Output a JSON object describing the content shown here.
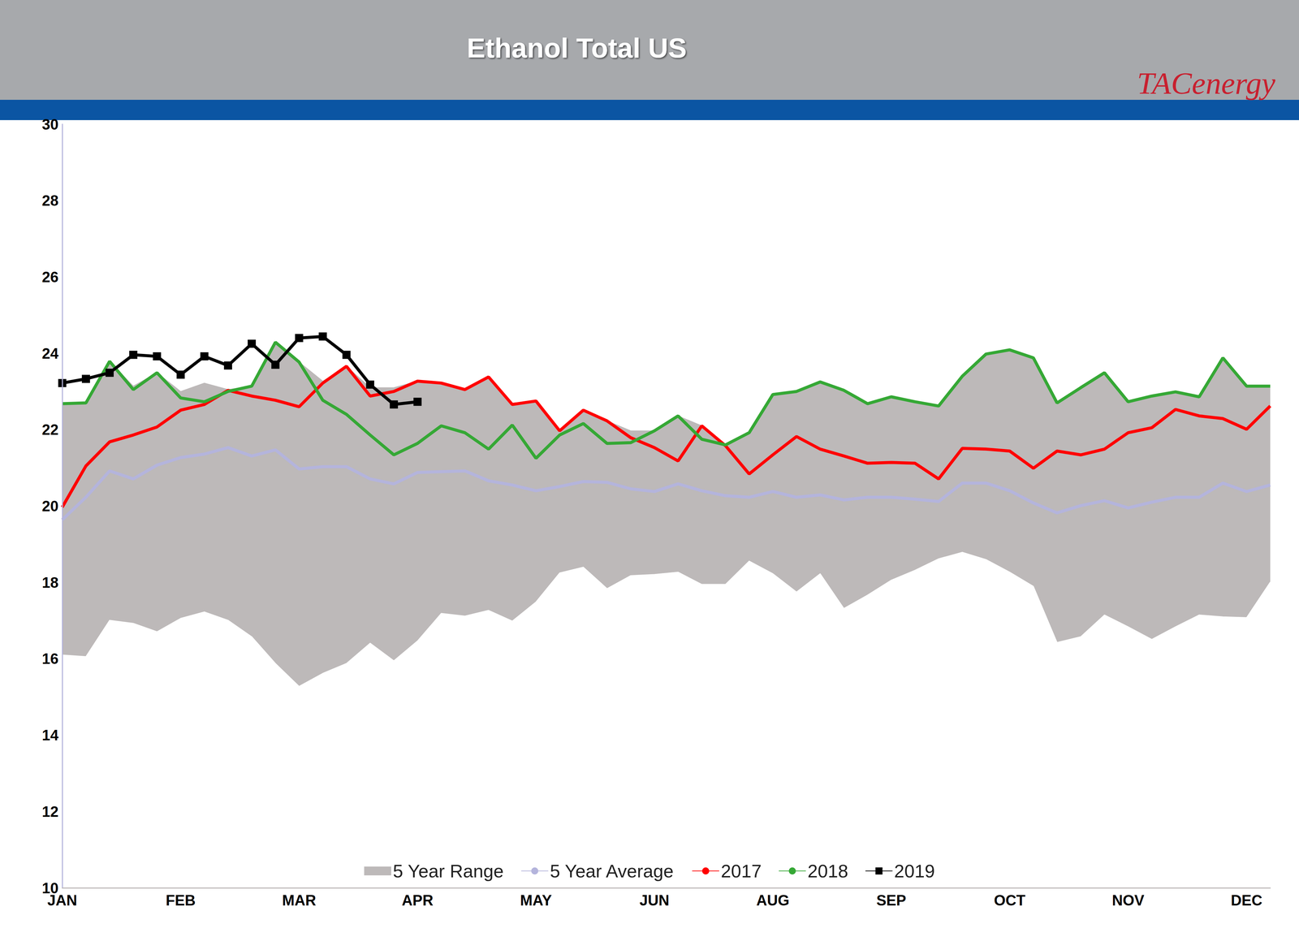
{
  "chart_data": {
    "type": "line",
    "title": "Ethanol Total US",
    "source": "TACenergy",
    "x": [
      "JAN",
      null,
      null,
      null,
      null,
      "FEB",
      null,
      null,
      null,
      null,
      "MAR",
      null,
      null,
      null,
      null,
      "APR",
      null,
      null,
      null,
      null,
      "MAY",
      null,
      null,
      null,
      null,
      "JUN",
      null,
      null,
      null,
      null,
      "AUG",
      null,
      null,
      null,
      null,
      "SEP",
      null,
      null,
      null,
      null,
      "OCT",
      null,
      null,
      null,
      null,
      "NOV",
      null,
      null,
      null,
      null,
      "DEC",
      null
    ],
    "ylim": [
      10,
      30
    ],
    "yticks": [
      10,
      12,
      14,
      16,
      18,
      20,
      22,
      24,
      26,
      28,
      30
    ],
    "grid": false,
    "legend": "bottom",
    "series": [
      {
        "name": "5 Year Range",
        "type": "range",
        "color": "#bdb9b9",
        "low": [
          16.1,
          16.06,
          17.01,
          16.93,
          16.71,
          17.06,
          17.23,
          17.01,
          16.58,
          15.88,
          15.28,
          15.62,
          15.88,
          16.41,
          15.95,
          16.47,
          17.19,
          17.12,
          17.27,
          16.99,
          17.49,
          18.25,
          18.4,
          17.84,
          18.18,
          18.21,
          18.27,
          17.95,
          17.95,
          18.56,
          18.23,
          17.75,
          18.23,
          17.32,
          17.67,
          18.06,
          18.32,
          18.62,
          18.79,
          18.6,
          18.27,
          17.9,
          16.43,
          16.58,
          17.15,
          16.84,
          16.51,
          16.84,
          17.15,
          17.1,
          17.08,
          18.01
        ],
        "high": [
          22.68,
          22.7,
          23.79,
          23.14,
          23.49,
          23.0,
          23.22,
          23.05,
          23.14,
          24.29,
          23.77,
          23.27,
          23.66,
          23.1,
          23.1,
          23.27,
          23.22,
          23.05,
          23.38,
          22.66,
          22.75,
          21.97,
          22.51,
          22.23,
          21.97,
          21.97,
          22.36,
          22.1,
          21.6,
          21.92,
          22.92,
          23.0,
          23.25,
          23.03,
          22.68,
          22.86,
          22.73,
          22.62,
          23.4,
          23.98,
          24.09,
          23.88,
          22.7,
          23.1,
          23.49,
          22.73,
          22.88,
          22.99,
          22.86,
          23.88,
          23.14,
          23.14
        ]
      },
      {
        "name": "5 Year Average",
        "type": "line",
        "color": "#b4b4dc",
        "values": [
          19.64,
          20.23,
          20.92,
          20.71,
          21.07,
          21.27,
          21.36,
          21.53,
          21.31,
          21.47,
          20.97,
          21.03,
          21.03,
          20.71,
          20.58,
          20.88,
          20.9,
          20.92,
          20.66,
          20.55,
          20.4,
          20.51,
          20.64,
          20.62,
          20.45,
          20.38,
          20.58,
          20.4,
          20.27,
          20.23,
          20.38,
          20.23,
          20.29,
          20.16,
          20.23,
          20.23,
          20.18,
          20.12,
          20.6,
          20.6,
          20.4,
          20.08,
          19.82,
          20.01,
          20.14,
          19.95,
          20.1,
          20.23,
          20.23,
          20.6,
          20.38,
          20.55
        ]
      },
      {
        "name": "2017",
        "type": "line",
        "color": "#ff0000",
        "values": [
          19.97,
          21.05,
          21.68,
          21.86,
          22.07,
          22.51,
          22.66,
          23.03,
          22.88,
          22.77,
          22.6,
          23.22,
          23.66,
          22.88,
          23.0,
          23.27,
          23.22,
          23.05,
          23.38,
          22.66,
          22.75,
          21.97,
          22.51,
          22.23,
          21.79,
          21.53,
          21.18,
          22.1,
          21.58,
          20.84,
          21.34,
          21.82,
          21.49,
          21.31,
          21.12,
          21.14,
          21.12,
          20.71,
          21.51,
          21.49,
          21.44,
          20.99,
          21.44,
          21.34,
          21.49,
          21.92,
          22.05,
          22.53,
          22.36,
          22.29,
          22.01,
          22.62
        ]
      },
      {
        "name": "2018",
        "type": "line",
        "color": "#35a835",
        "values": [
          22.68,
          22.7,
          23.79,
          23.05,
          23.49,
          22.83,
          22.73,
          23.0,
          23.14,
          24.29,
          23.77,
          22.77,
          22.4,
          21.86,
          21.34,
          21.64,
          22.1,
          21.92,
          21.49,
          22.12,
          21.25,
          21.86,
          22.16,
          21.64,
          21.66,
          21.97,
          22.36,
          21.75,
          21.6,
          21.92,
          22.92,
          23.0,
          23.25,
          23.03,
          22.68,
          22.86,
          22.73,
          22.62,
          23.4,
          23.98,
          24.09,
          23.88,
          22.7,
          23.1,
          23.49,
          22.73,
          22.88,
          22.99,
          22.86,
          23.88,
          23.14,
          23.14
        ]
      },
      {
        "name": "2019",
        "type": "line",
        "color": "#000000",
        "marker": "square",
        "values": [
          23.22,
          23.33,
          23.49,
          23.96,
          23.92,
          23.44,
          23.92,
          23.68,
          24.25,
          23.7,
          24.4,
          24.44,
          23.96,
          23.18,
          22.66,
          22.73,
          null,
          null,
          null,
          null,
          null,
          null,
          null,
          null,
          null,
          null,
          null,
          null,
          null,
          null,
          null,
          null,
          null,
          null,
          null,
          null,
          null,
          null,
          null,
          null,
          null,
          null,
          null,
          null,
          null,
          null,
          null,
          null,
          null,
          null,
          null,
          null
        ]
      }
    ]
  }
}
